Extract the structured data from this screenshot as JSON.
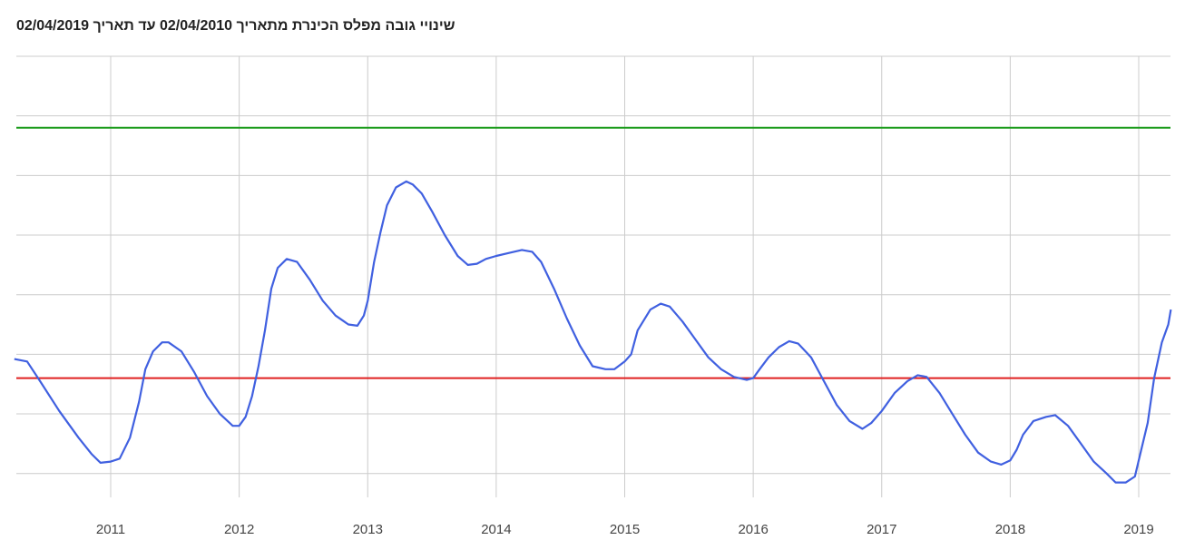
{
  "chart_data": {
    "type": "line",
    "title": "שינויי גובה מפלס הכינרת מתאריך 02/04/2010 עד תאריך 02/04/2019",
    "xlabel": "",
    "ylabel": "",
    "x_ticks": [
      "2011",
      "2012",
      "2013",
      "2014",
      "2015",
      "2016",
      "2017",
      "2018",
      "2019"
    ],
    "xlim": [
      2010.25,
      2019.25
    ],
    "ylim": [
      -215.0,
      -207.6
    ],
    "grid": true,
    "reference_lines": [
      {
        "value": -208.8,
        "color": "#1a9b1a"
      },
      {
        "value": -213.0,
        "color": "#e02020"
      }
    ],
    "series": [
      {
        "color": "#4060e0",
        "points": [
          [
            2010.25,
            -212.68
          ],
          [
            2010.35,
            -212.72
          ],
          [
            2010.45,
            -213.05
          ],
          [
            2010.6,
            -213.55
          ],
          [
            2010.75,
            -214.0
          ],
          [
            2010.85,
            -214.27
          ],
          [
            2010.92,
            -214.42
          ],
          [
            2011.0,
            -214.4
          ],
          [
            2011.07,
            -214.35
          ],
          [
            2011.15,
            -214.0
          ],
          [
            2011.22,
            -213.4
          ],
          [
            2011.27,
            -212.85
          ],
          [
            2011.33,
            -212.55
          ],
          [
            2011.4,
            -212.4
          ],
          [
            2011.45,
            -212.4
          ],
          [
            2011.55,
            -212.55
          ],
          [
            2011.65,
            -212.9
          ],
          [
            2011.75,
            -213.3
          ],
          [
            2011.85,
            -213.6
          ],
          [
            2011.95,
            -213.8
          ],
          [
            2012.0,
            -213.8
          ],
          [
            2012.05,
            -213.65
          ],
          [
            2012.1,
            -213.3
          ],
          [
            2012.15,
            -212.8
          ],
          [
            2012.2,
            -212.2
          ],
          [
            2012.25,
            -211.5
          ],
          [
            2012.3,
            -211.15
          ],
          [
            2012.37,
            -211.0
          ],
          [
            2012.45,
            -211.05
          ],
          [
            2012.55,
            -211.35
          ],
          [
            2012.65,
            -211.7
          ],
          [
            2012.75,
            -211.95
          ],
          [
            2012.85,
            -212.1
          ],
          [
            2012.92,
            -212.12
          ],
          [
            2012.97,
            -211.95
          ],
          [
            2013.0,
            -211.7
          ],
          [
            2013.05,
            -211.05
          ],
          [
            2013.1,
            -210.55
          ],
          [
            2013.15,
            -210.1
          ],
          [
            2013.22,
            -209.8
          ],
          [
            2013.3,
            -209.7
          ],
          [
            2013.35,
            -209.75
          ],
          [
            2013.42,
            -209.9
          ],
          [
            2013.5,
            -210.2
          ],
          [
            2013.6,
            -210.6
          ],
          [
            2013.7,
            -210.95
          ],
          [
            2013.78,
            -211.1
          ],
          [
            2013.85,
            -211.08
          ],
          [
            2013.92,
            -211.0
          ],
          [
            2014.0,
            -210.95
          ],
          [
            2014.1,
            -210.9
          ],
          [
            2014.2,
            -210.85
          ],
          [
            2014.28,
            -210.88
          ],
          [
            2014.35,
            -211.05
          ],
          [
            2014.45,
            -211.5
          ],
          [
            2014.55,
            -212.0
          ],
          [
            2014.65,
            -212.45
          ],
          [
            2014.75,
            -212.8
          ],
          [
            2014.85,
            -212.85
          ],
          [
            2014.92,
            -212.85
          ],
          [
            2015.0,
            -212.72
          ],
          [
            2015.05,
            -212.6
          ],
          [
            2015.1,
            -212.2
          ],
          [
            2015.2,
            -211.85
          ],
          [
            2015.28,
            -211.75
          ],
          [
            2015.35,
            -211.8
          ],
          [
            2015.45,
            -212.05
          ],
          [
            2015.55,
            -212.35
          ],
          [
            2015.65,
            -212.65
          ],
          [
            2015.75,
            -212.85
          ],
          [
            2015.85,
            -212.98
          ],
          [
            2015.95,
            -213.03
          ],
          [
            2016.0,
            -213.0
          ],
          [
            2016.05,
            -212.85
          ],
          [
            2016.12,
            -212.65
          ],
          [
            2016.2,
            -212.48
          ],
          [
            2016.28,
            -212.38
          ],
          [
            2016.35,
            -212.42
          ],
          [
            2016.45,
            -212.65
          ],
          [
            2016.55,
            -213.05
          ],
          [
            2016.65,
            -213.45
          ],
          [
            2016.75,
            -213.72
          ],
          [
            2016.85,
            -213.85
          ],
          [
            2016.92,
            -213.75
          ],
          [
            2017.0,
            -213.55
          ],
          [
            2017.1,
            -213.25
          ],
          [
            2017.2,
            -213.05
          ],
          [
            2017.28,
            -212.95
          ],
          [
            2017.35,
            -212.98
          ],
          [
            2017.45,
            -213.25
          ],
          [
            2017.55,
            -213.6
          ],
          [
            2017.65,
            -213.95
          ],
          [
            2017.75,
            -214.25
          ],
          [
            2017.85,
            -214.4
          ],
          [
            2017.93,
            -214.45
          ],
          [
            2018.0,
            -214.38
          ],
          [
            2018.05,
            -214.2
          ],
          [
            2018.1,
            -213.95
          ],
          [
            2018.18,
            -213.72
          ],
          [
            2018.28,
            -213.65
          ],
          [
            2018.35,
            -213.62
          ],
          [
            2018.45,
            -213.8
          ],
          [
            2018.55,
            -214.1
          ],
          [
            2018.65,
            -214.4
          ],
          [
            2018.75,
            -214.6
          ],
          [
            2018.82,
            -214.75
          ],
          [
            2018.9,
            -214.75
          ],
          [
            2018.97,
            -214.65
          ],
          [
            2019.02,
            -214.2
          ],
          [
            2019.07,
            -213.75
          ],
          [
            2019.12,
            -213.0
          ],
          [
            2019.18,
            -212.4
          ],
          [
            2019.23,
            -212.1
          ],
          [
            2019.25,
            -211.85
          ]
        ]
      }
    ]
  }
}
